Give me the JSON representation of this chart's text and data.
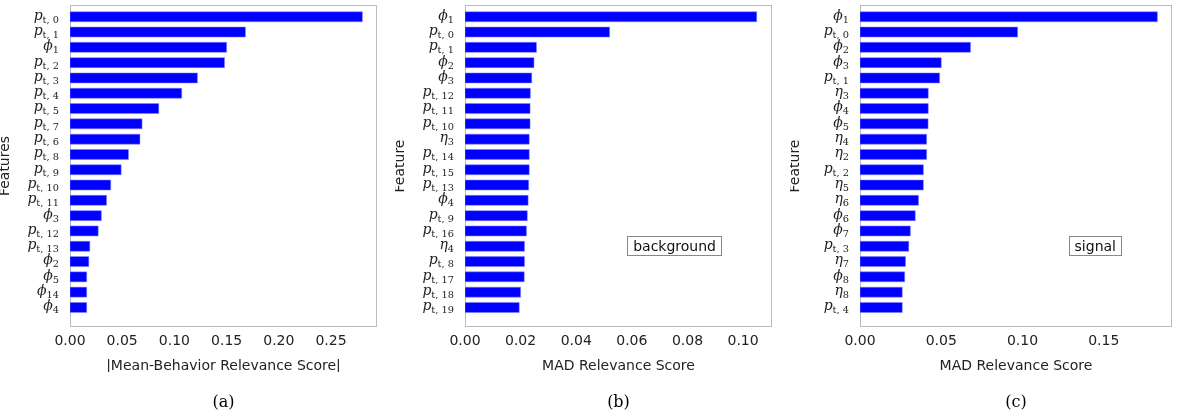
{
  "chart_data": [
    {
      "type": "bar",
      "orientation": "horizontal",
      "xlabel": "|Mean-Behavior Relevance Score|",
      "ylabel": "Features",
      "categories": [
        "p$_{t, 0}$",
        "p$_{t, 1}$",
        "ϕ$_{1}$",
        "p$_{t, 2}$",
        "p$_{t, 3}$",
        "p$_{t, 4}$",
        "p$_{t, 5}$",
        "p$_{t, 7}$",
        "p$_{t, 6}$",
        "p$_{t, 8}$",
        "p$_{t, 9}$",
        "p$_{t, 10}$",
        "p$_{t, 11}$",
        "ϕ$_{3}$",
        "p$_{t, 12}$",
        "p$_{t, 13}$",
        "ϕ$_{2}$",
        "ϕ$_{5}$",
        "ϕ$_{14}$",
        "ϕ$_{4}$"
      ],
      "values": [
        0.28,
        0.168,
        0.15,
        0.148,
        0.122,
        0.107,
        0.085,
        0.069,
        0.067,
        0.056,
        0.049,
        0.039,
        0.035,
        0.03,
        0.027,
        0.019,
        0.018,
        0.016,
        0.016,
        0.016
      ],
      "color": "#0000ff",
      "xlim": [
        0,
        0.294
      ],
      "xticks": [
        {
          "value": 0,
          "label": "0.00"
        },
        {
          "value": 0.05,
          "label": "0.05"
        },
        {
          "value": 0.1,
          "label": "0.10"
        },
        {
          "value": 0.15,
          "label": "0.15"
        },
        {
          "value": 0.2,
          "label": "0.20"
        },
        {
          "value": 0.25,
          "label": "0.25"
        }
      ],
      "annotations": [
        "(a)"
      ]
    },
    {
      "type": "bar",
      "orientation": "horizontal",
      "xlabel": "MAD Relevance Score",
      "ylabel": "Feature",
      "categories": [
        "ϕ$_{1}$",
        "p$_{t, 0}$",
        "p$_{t, 1}$",
        "ϕ$_{2}$",
        "ϕ$_{3}$",
        "p$_{t, 12}$",
        "p$_{t, 11}$",
        "p$_{t, 10}$",
        "η$_{3}$",
        "p$_{t, 14}$",
        "p$_{t, 15}$",
        "p$_{t, 13}$",
        "ϕ$_{4}$",
        "p$_{t, 9}$",
        "p$_{t, 16}$",
        "η$_{4}$",
        "p$_{t, 8}$",
        "p$_{t, 17}$",
        "p$_{t, 18}$",
        "p$_{t, 19}$"
      ],
      "values": [
        0.1049,
        0.052,
        0.0257,
        0.0248,
        0.024,
        0.0235,
        0.0234,
        0.0234,
        0.0231,
        0.0231,
        0.0231,
        0.0229,
        0.0227,
        0.0224,
        0.0221,
        0.0214,
        0.0214,
        0.0213,
        0.02,
        0.0195
      ],
      "color": "#0000ff",
      "xlim": [
        0,
        0.1104
      ],
      "xticks": [
        {
          "value": 0,
          "label": "0.00"
        },
        {
          "value": 0.02,
          "label": "0.02"
        },
        {
          "value": 0.04,
          "label": "0.04"
        },
        {
          "value": 0.06,
          "label": "0.06"
        },
        {
          "value": 0.08,
          "label": "0.08"
        },
        {
          "value": 0.1,
          "label": "0.10"
        }
      ],
      "annotations": [
        "background",
        "(b)"
      ]
    },
    {
      "type": "bar",
      "orientation": "horizontal",
      "xlabel": "MAD Relevance Score",
      "ylabel": "Feature",
      "categories": [
        "ϕ$_{1}$",
        "p$_{t, 0}$",
        "ϕ$_{2}$",
        "ϕ$_{3}$",
        "p$_{t, 1}$",
        "η$_{3}$",
        "ϕ$_{4}$",
        "ϕ$_{5}$",
        "η$_{4}$",
        "η$_{2}$",
        "p$_{t, 2}$",
        "η$_{5}$",
        "η$_{6}$",
        "ϕ$_{6}$",
        "ϕ$_{7}$",
        "p$_{t, 3}$",
        "η$_{7}$",
        "ϕ$_{8}$",
        "η$_{8}$",
        "p$_{t, 4}$"
      ],
      "values": [
        0.183,
        0.097,
        0.068,
        0.05,
        0.049,
        0.042,
        0.042,
        0.0419,
        0.041,
        0.041,
        0.039,
        0.039,
        0.036,
        0.034,
        0.031,
        0.03,
        0.028,
        0.0275,
        0.026,
        0.026
      ],
      "color": "#0000ff",
      "xlim": [
        0,
        0.192
      ],
      "xticks": [
        {
          "value": 0,
          "label": "0.00"
        },
        {
          "value": 0.05,
          "label": "0.05"
        },
        {
          "value": 0.1,
          "label": "0.10"
        },
        {
          "value": 0.15,
          "label": "0.15"
        }
      ],
      "annotations": [
        "signal",
        "(c)"
      ]
    }
  ]
}
